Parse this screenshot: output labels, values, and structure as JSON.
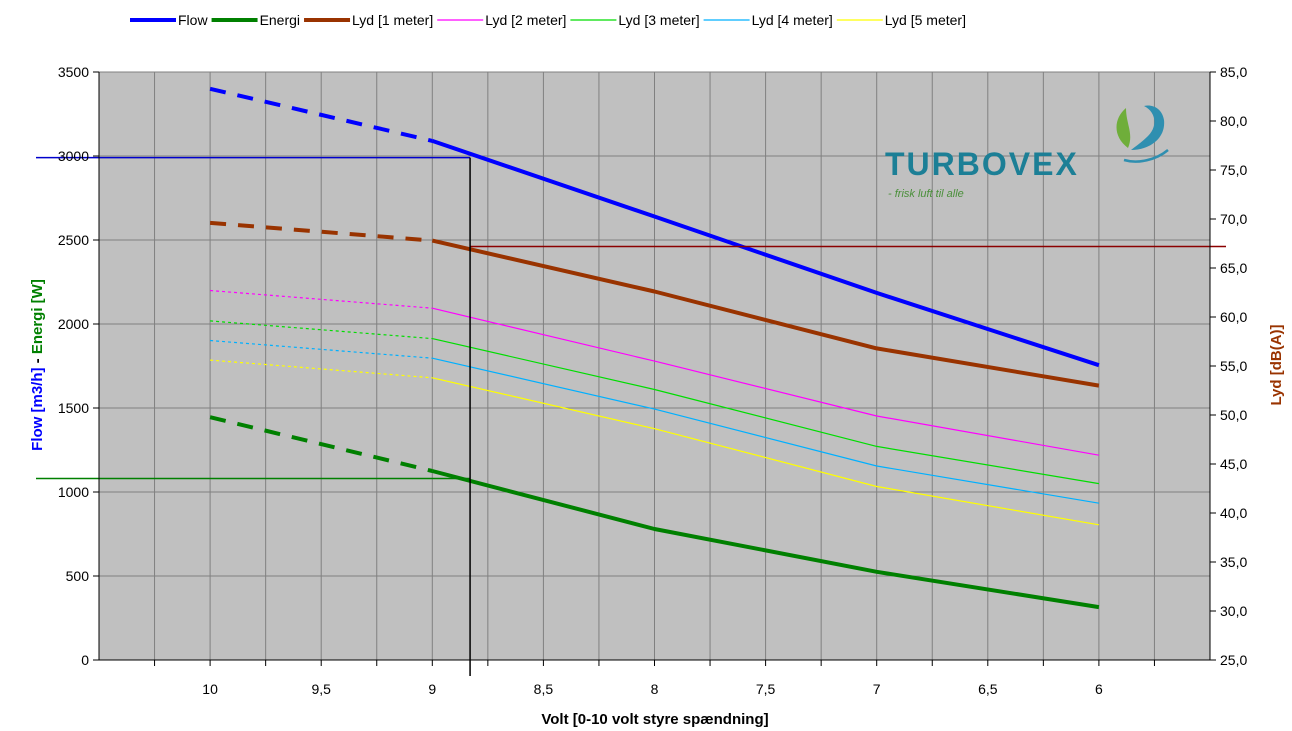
{
  "chart_data": {
    "type": "line",
    "x": [
      10,
      9,
      8,
      7,
      6
    ],
    "xticks": [
      "10",
      "9,5",
      "9",
      "8,5",
      "8",
      "7,5",
      "7",
      "6,5",
      "6"
    ],
    "xlabel": "Volt [0-10 volt styre spændning]",
    "ylabel_left_part1": "Flow [m3/h]",
    "ylabel_left_sep": " - ",
    "ylabel_left_part2": "Energi [W]",
    "ylabel_right": "Lyd [dB(A)]",
    "ylim_left": [
      0,
      3500
    ],
    "ylim_right": [
      25,
      85
    ],
    "yticks_left": [
      "0",
      "500",
      "1000",
      "1500",
      "2000",
      "2500",
      "3000",
      "3500"
    ],
    "yticks_right": [
      "25,0",
      "30,0",
      "35,0",
      "40,0",
      "45,0",
      "50,0",
      "55,0",
      "60,0",
      "65,0",
      "70,0",
      "75,0",
      "80,0",
      "85,0"
    ],
    "grid": true,
    "legend_position": "top",
    "dashed_segment_x": [
      10,
      9
    ],
    "series": [
      {
        "name": "Flow",
        "axis": "left",
        "color": "#0000ff",
        "width": 4,
        "values": [
          3400,
          3090,
          2640,
          2185,
          1755
        ]
      },
      {
        "name": "Energi",
        "axis": "left",
        "color": "#008000",
        "width": 4,
        "values": [
          1445,
          1125,
          780,
          525,
          315
        ]
      },
      {
        "name": "Lyd [1 meter]",
        "axis": "right",
        "color": "#993300",
        "width": 4,
        "values": [
          69.6,
          67.8,
          62.6,
          56.8,
          53.0
        ]
      },
      {
        "name": "Lyd [2 meter]",
        "axis": "right",
        "color": "#ff00ff",
        "width": 1.2,
        "values": [
          62.7,
          60.9,
          55.5,
          49.9,
          45.9
        ]
      },
      {
        "name": "Lyd [3 meter]",
        "axis": "right",
        "color": "#00dd00",
        "width": 1.2,
        "values": [
          59.6,
          57.8,
          52.6,
          46.8,
          43.0
        ]
      },
      {
        "name": "Lyd [4 meter]",
        "axis": "right",
        "color": "#00b0ff",
        "width": 1.2,
        "values": [
          57.6,
          55.8,
          50.6,
          44.8,
          41.0
        ]
      },
      {
        "name": "Lyd [5 meter]",
        "axis": "right",
        "color": "#ffff00",
        "width": 1.2,
        "values": [
          55.6,
          53.8,
          48.6,
          42.7,
          38.8
        ]
      }
    ],
    "reference_lines": {
      "flow_level": 2990,
      "energi_level": 1080,
      "lyd_level": 67.2,
      "volt_marker": 8.83,
      "flow_color": "#0000cc",
      "energi_color": "#008000",
      "lyd_color": "#8b0000",
      "volt_color": "#000000"
    },
    "colors": {
      "plot_bg": "#c0c0c0",
      "grid": "#808080",
      "label_flow": "#0000ff",
      "label_energi": "#008000",
      "label_lyd": "#993300"
    }
  },
  "logo": {
    "text": "TURBOVEX",
    "tagline": "- frisk luft til alle"
  }
}
